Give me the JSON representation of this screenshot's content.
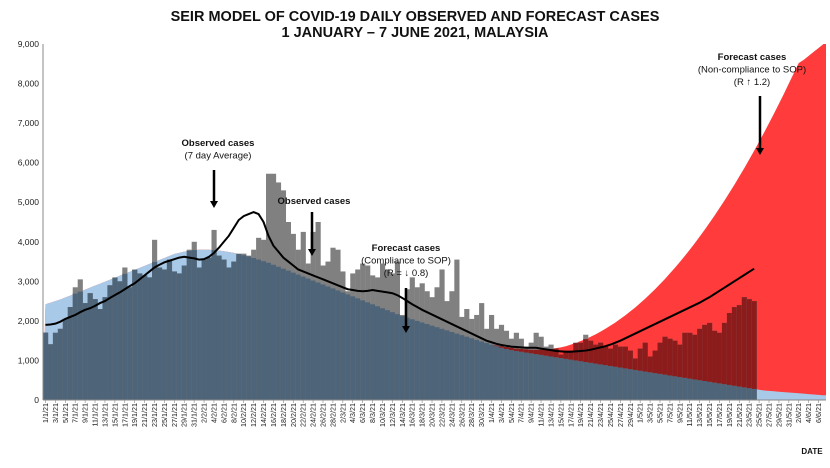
{
  "chart_data": {
    "type": "bar",
    "title_line1": "SEIR MODEL OF COVID-19 DAILY OBSERVED AND FORECAST CASES",
    "title_line2": "1 JANUARY  – 7 JUNE 2021, MALAYSIA",
    "xlabel": "DATE",
    "ylabel": "",
    "ylim": [
      0,
      9000
    ],
    "y_ticks": [
      "0",
      "1,000",
      "2,000",
      "3,000",
      "4,000",
      "5,000",
      "6,000",
      "7,000",
      "8,000",
      "9,000"
    ],
    "x_tick_labels": [
      "1/1/21",
      "3/1/21",
      "5/1/21",
      "7/1/21",
      "9/1/21",
      "11/1/21",
      "13/1/21",
      "15/1/21",
      "17/1/21",
      "19/1/21",
      "21/1/21",
      "23/1/21",
      "25/1/21",
      "27/1/21",
      "29/1/21",
      "31/1/21",
      "2/2/21",
      "4/2/21",
      "6/2/21",
      "8/2/21",
      "10/2/21",
      "12/2/21",
      "14/2/21",
      "16/2/21",
      "18/2/21",
      "20/2/21",
      "22/2/21",
      "24/2/21",
      "26/2/21",
      "28/2/21",
      "2/3/21",
      "4/3/21",
      "6/3/21",
      "8/3/21",
      "10/3/21",
      "12/3/21",
      "14/3/21",
      "16/3/21",
      "18/3/21",
      "20/3/21",
      "22/3/21",
      "24/3/21",
      "26/3/21",
      "28/3/21",
      "30/3/21",
      "1/4/21",
      "3/4/21",
      "5/4/21",
      "7/4/21",
      "9/4/21",
      "11/4/21",
      "13/4/21",
      "15/4/21",
      "17/4/21",
      "19/4/21",
      "21/4/21",
      "23/4/21",
      "25/4/21",
      "27/4/21",
      "29/4/21",
      "1/5/21",
      "3/5/21",
      "5/5/21",
      "7/5/21",
      "9/5/21",
      "11/5/21",
      "13/5/21",
      "15/5/21",
      "17/5/21",
      "19/5/21",
      "21/5/21",
      "23/5/21",
      "25/5/21",
      "27/5/21",
      "29/5/21",
      "31/5/21",
      "2/6/21",
      "4/6/21",
      "6/6/21"
    ],
    "num_days": 158,
    "observed_days": 144,
    "observed_cases_daily": [
      1704,
      1410,
      1700,
      1800,
      2050,
      2350,
      2850,
      3050,
      2450,
      2700,
      2550,
      2300,
      2600,
      2900,
      3100,
      3000,
      3350,
      2850,
      3300,
      3200,
      3150,
      3100,
      4050,
      3350,
      3300,
      3550,
      3250,
      3200,
      3400,
      3800,
      4000,
      3350,
      3550,
      3600,
      4300,
      3650,
      3550,
      3350,
      3500,
      3700,
      3700,
      3650,
      3800,
      4100,
      4050,
      5720,
      5720,
      5500,
      5300,
      4500,
      4200,
      3800,
      4250,
      3450,
      4250,
      4500,
      3400,
      3500,
      3850,
      3800,
      3250,
      2750,
      3200,
      3300,
      3450,
      3400,
      3150,
      3100,
      3450,
      3300,
      3200,
      3500,
      2150,
      2800,
      3100,
      2850,
      2950,
      2750,
      2600,
      2850,
      3300,
      2500,
      2750,
      3550,
      2100,
      2300,
      2050,
      2150,
      2450,
      1800,
      2150,
      1800,
      1900,
      1750,
      1550,
      1700,
      1550,
      1350,
      1450,
      1700,
      1600,
      1350,
      1400,
      1300,
      1150,
      1250,
      1250,
      1450,
      1450,
      1650,
      1500,
      1400,
      1450,
      1350,
      1300,
      1400,
      1350,
      1350,
      1250,
      1050,
      1300,
      1450,
      1100,
      1250,
      1450,
      1600,
      1550,
      1500,
      1400,
      1700,
      1700,
      1650,
      1800,
      1900,
      1950,
      1750,
      1700,
      1950,
      2200,
      2350,
      2400,
      2600,
      2550,
      2500
    ],
    "observed_cases_7day_average": [
      1900,
      1910,
      1930,
      1980,
      2050,
      2100,
      2150,
      2220,
      2280,
      2320,
      2380,
      2450,
      2500,
      2580,
      2650,
      2720,
      2800,
      2880,
      2950,
      3050,
      3150,
      3250,
      3350,
      3420,
      3480,
      3520,
      3560,
      3600,
      3620,
      3600,
      3580,
      3550,
      3560,
      3620,
      3720,
      3850,
      4000,
      4150,
      4350,
      4550,
      4650,
      4700,
      4750,
      4700,
      4500,
      4150,
      3900,
      3750,
      3600,
      3500,
      3400,
      3300,
      3250,
      3200,
      3150,
      3100,
      3050,
      3000,
      2950,
      2900,
      2850,
      2800,
      2780,
      2760,
      2750,
      2760,
      2780,
      2760,
      2740,
      2720,
      2700,
      2650,
      2580,
      2500,
      2420,
      2350,
      2280,
      2220,
      2160,
      2100,
      2040,
      1980,
      1920,
      1860,
      1800,
      1740,
      1680,
      1620,
      1560,
      1500,
      1460,
      1420,
      1390,
      1370,
      1350,
      1340,
      1330,
      1320,
      1320,
      1320,
      1300,
      1280,
      1260,
      1240,
      1230,
      1220,
      1220,
      1230,
      1240,
      1250,
      1270,
      1300,
      1330,
      1360,
      1400,
      1450,
      1500,
      1560,
      1620,
      1680,
      1740,
      1800,
      1860,
      1920,
      1980,
      2040,
      2100,
      2160,
      2220,
      2280,
      2340,
      2400,
      2460,
      2530,
      2600,
      2680,
      2760,
      2840,
      2920,
      3000,
      3080,
      3160,
      3240,
      3320
    ],
    "seir_compliance_sop": [
      2420,
      2460,
      2500,
      2540,
      2590,
      2640,
      2690,
      2740,
      2790,
      2840,
      2890,
      2940,
      2990,
      3040,
      3090,
      3140,
      3190,
      3240,
      3290,
      3340,
      3390,
      3440,
      3490,
      3540,
      3590,
      3640,
      3690,
      3720,
      3750,
      3770,
      3790,
      3800,
      3800,
      3800,
      3790,
      3780,
      3760,
      3740,
      3720,
      3690,
      3660,
      3630,
      3590,
      3550,
      3510,
      3470,
      3420,
      3370,
      3320,
      3270,
      3220,
      3170,
      3120,
      3070,
      3020,
      2970,
      2920,
      2870,
      2820,
      2770,
      2720,
      2670,
      2620,
      2570,
      2520,
      2470,
      2420,
      2370,
      2320,
      2270,
      2220,
      2170,
      2120,
      2080,
      2040,
      2000,
      1960,
      1920,
      1880,
      1840,
      1800,
      1760,
      1720,
      1680,
      1640,
      1600,
      1560,
      1520,
      1480,
      1440,
      1400,
      1360,
      1320,
      1290,
      1260,
      1240,
      1220,
      1200,
      1180,
      1160,
      1140,
      1120,
      1100,
      1080,
      1060,
      1040,
      1020,
      1000,
      980,
      960,
      940,
      920,
      900,
      880,
      860,
      840,
      820,
      800,
      780,
      760,
      740,
      720,
      700,
      680,
      660,
      640,
      620,
      600,
      580,
      560,
      540,
      520,
      500,
      480,
      460,
      440,
      420,
      400,
      380,
      360,
      340,
      320,
      300,
      280,
      260,
      240,
      230,
      220,
      210,
      200,
      190,
      180,
      170,
      160,
      150,
      140,
      130,
      120
    ],
    "seir_noncompliance_sop": [
      2420,
      2460,
      2500,
      2540,
      2590,
      2640,
      2690,
      2740,
      2790,
      2840,
      2890,
      2940,
      2990,
      3040,
      3090,
      3140,
      3190,
      3240,
      3290,
      3340,
      3390,
      3440,
      3490,
      3540,
      3590,
      3640,
      3690,
      3720,
      3750,
      3770,
      3790,
      3800,
      3800,
      3800,
      3790,
      3780,
      3760,
      3740,
      3720,
      3690,
      3660,
      3630,
      3590,
      3550,
      3510,
      3470,
      3420,
      3370,
      3320,
      3270,
      3220,
      3170,
      3120,
      3070,
      3020,
      2970,
      2920,
      2870,
      2820,
      2770,
      2720,
      2670,
      2620,
      2570,
      2520,
      2470,
      2420,
      2370,
      2320,
      2270,
      2220,
      2170,
      2120,
      2080,
      2040,
      2000,
      1960,
      1920,
      1880,
      1840,
      1800,
      1760,
      1720,
      1680,
      1640,
      1600,
      1560,
      1520,
      1480,
      1440,
      1400,
      1380,
      1360,
      1340,
      1320,
      1300,
      1290,
      1280,
      1270,
      1270,
      1270,
      1280,
      1290,
      1310,
      1330,
      1360,
      1400,
      1440,
      1490,
      1540,
      1600,
      1660,
      1730,
      1800,
      1880,
      1960,
      2050,
      2140,
      2240,
      2340,
      2450,
      2560,
      2680,
      2800,
      2930,
      3060,
      3200,
      3340,
      3490,
      3640,
      3800,
      3960,
      4130,
      4300,
      4480,
      4660,
      4850,
      5040,
      5240,
      5440,
      5650,
      5860,
      6080,
      6300,
      6530,
      6760,
      7000,
      7240,
      7490,
      7740,
      8000,
      8260,
      8520,
      8600,
      8700,
      8800,
      8900,
      9000
    ],
    "colors": {
      "observed_bar": "#808080",
      "compliance_area": "#a9c9e8",
      "noncompliance_area": "#ff3b3b",
      "moving_average_line": "#000000",
      "overlap_blue": "#4e6478",
      "overlap_red": "#8c1c1c"
    },
    "annotations": [
      {
        "id": "observed-7day",
        "lines": [
          "Observed cases",
          "(7 day Average)"
        ]
      },
      {
        "id": "observed",
        "lines": [
          "Observed cases"
        ]
      },
      {
        "id": "forecast-compliance",
        "lines": [
          "Forecast cases",
          "(Compliance to SOP)",
          "(R = ↓ 0.8)"
        ]
      },
      {
        "id": "forecast-noncompliance",
        "lines": [
          "Forecast cases",
          "(Non-compliance to SOP)",
          "(R ↑ 1.2)"
        ]
      }
    ],
    "grid": false,
    "legend": "none"
  }
}
